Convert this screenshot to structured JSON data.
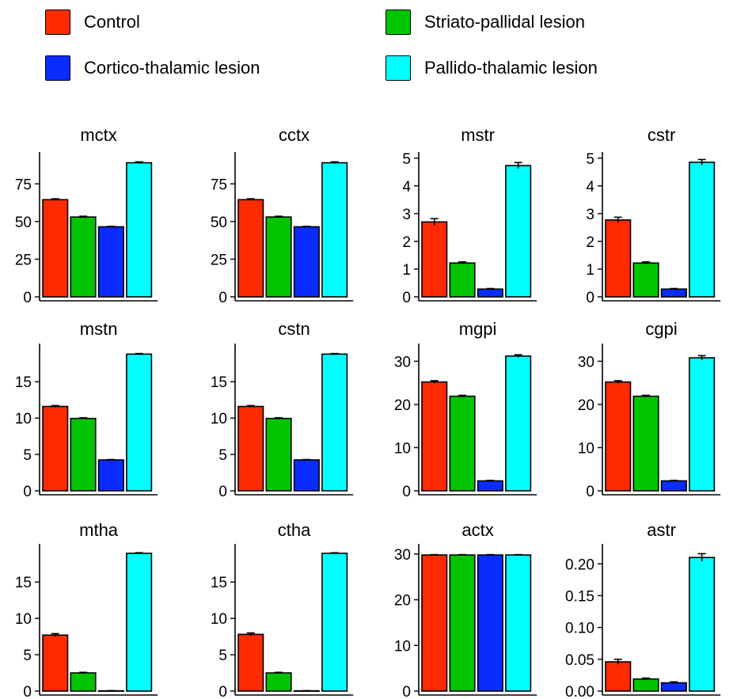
{
  "legend": [
    {
      "label": "Control",
      "color": "#ff2a00"
    },
    {
      "label": "Striato-pallidal lesion",
      "color": "#00c400"
    },
    {
      "label": "Cortico-thalamic lesion",
      "color": "#0a2cff"
    },
    {
      "label": "Pallido-thalamic lesion",
      "color": "#00ffff"
    }
  ],
  "chart_data": [
    {
      "type": "bar",
      "title": "mctx",
      "ylim": [
        0,
        93
      ],
      "yticks": [
        0,
        25,
        50,
        75
      ],
      "tick_labels": [
        "0",
        "25",
        "50",
        "75"
      ],
      "values": [
        64.5,
        53,
        46.5,
        89
      ],
      "errors": [
        0.6,
        0.5,
        0.3,
        0.6
      ]
    },
    {
      "type": "bar",
      "title": "cctx",
      "ylim": [
        0,
        93
      ],
      "yticks": [
        0,
        25,
        50,
        75
      ],
      "tick_labels": [
        "0",
        "25",
        "50",
        "75"
      ],
      "values": [
        64.5,
        53,
        46.5,
        89
      ],
      "errors": [
        0.6,
        0.5,
        0.3,
        0.6
      ]
    },
    {
      "type": "bar",
      "title": "mstr",
      "ylim": [
        0,
        5.05
      ],
      "yticks": [
        0,
        1,
        2,
        3,
        4,
        5
      ],
      "tick_labels": [
        "0",
        "1",
        "2",
        "3",
        "4",
        "5"
      ],
      "values": [
        2.7,
        1.22,
        0.28,
        4.73
      ],
      "errors": [
        0.12,
        0.04,
        0.02,
        0.11
      ]
    },
    {
      "type": "bar",
      "title": "cstr",
      "ylim": [
        0,
        5.05
      ],
      "yticks": [
        0,
        1,
        2,
        3,
        4,
        5
      ],
      "tick_labels": [
        "0",
        "1",
        "2",
        "3",
        "4",
        "5"
      ],
      "values": [
        2.77,
        1.22,
        0.28,
        4.85
      ],
      "errors": [
        0.1,
        0.04,
        0.02,
        0.1
      ]
    },
    {
      "type": "bar",
      "title": "mstn",
      "ylim": [
        0,
        19.6
      ],
      "yticks": [
        0,
        5,
        10,
        15
      ],
      "tick_labels": [
        "0",
        "5",
        "10",
        "15"
      ],
      "values": [
        11.6,
        9.95,
        4.25,
        18.8
      ],
      "errors": [
        0.12,
        0.1,
        0.05,
        0.08
      ]
    },
    {
      "type": "bar",
      "title": "cstn",
      "ylim": [
        0,
        19.6
      ],
      "yticks": [
        0,
        5,
        10,
        15
      ],
      "tick_labels": [
        "0",
        "5",
        "10",
        "15"
      ],
      "values": [
        11.6,
        9.95,
        4.25,
        18.8
      ],
      "errors": [
        0.12,
        0.1,
        0.05,
        0.08
      ]
    },
    {
      "type": "bar",
      "title": "mgpi",
      "ylim": [
        0,
        33
      ],
      "yticks": [
        0,
        10,
        20,
        30
      ],
      "tick_labels": [
        "0",
        "10",
        "20",
        "30"
      ],
      "values": [
        25.2,
        21.9,
        2.3,
        31.2
      ],
      "errors": [
        0.3,
        0.2,
        0.12,
        0.3
      ]
    },
    {
      "type": "bar",
      "title": "cgpi",
      "ylim": [
        0,
        33
      ],
      "yticks": [
        0,
        10,
        20,
        30
      ],
      "tick_labels": [
        "0",
        "10",
        "20",
        "30"
      ],
      "values": [
        25.2,
        21.9,
        2.3,
        30.8
      ],
      "errors": [
        0.3,
        0.2,
        0.12,
        0.5
      ]
    },
    {
      "type": "bar",
      "title": "mtha",
      "ylim": [
        0,
        19.6
      ],
      "yticks": [
        0,
        5,
        10,
        15
      ],
      "tick_labels": [
        "0",
        "5",
        "10",
        "15"
      ],
      "values": [
        7.7,
        2.5,
        0.04,
        18.95
      ],
      "errors": [
        0.2,
        0.08,
        0.02,
        0.08
      ]
    },
    {
      "type": "bar",
      "title": "ctha",
      "ylim": [
        0,
        19.6
      ],
      "yticks": [
        0,
        5,
        10,
        15
      ],
      "tick_labels": [
        "0",
        "5",
        "10",
        "15"
      ],
      "values": [
        7.8,
        2.5,
        0.04,
        18.95
      ],
      "errors": [
        0.2,
        0.08,
        0.02,
        0.08
      ]
    },
    {
      "type": "bar",
      "title": "actx",
      "ylim": [
        0,
        31.2
      ],
      "yticks": [
        0,
        10,
        20,
        30
      ],
      "tick_labels": [
        "0",
        "10",
        "20",
        "30"
      ],
      "values": [
        29.8,
        29.8,
        29.8,
        29.8
      ],
      "errors": [
        0.08,
        0.08,
        0.08,
        0.08
      ]
    },
    {
      "type": "bar",
      "title": "astr",
      "ylim": [
        0,
        0.224
      ],
      "yticks": [
        0,
        0.05,
        0.1,
        0.15,
        0.2
      ],
      "tick_labels": [
        "0.00",
        "0.05",
        "0.10",
        "0.15",
        "0.20"
      ],
      "values": [
        0.046,
        0.019,
        0.013,
        0.21
      ],
      "errors": [
        0.004,
        0.0015,
        0.0015,
        0.006
      ]
    }
  ]
}
